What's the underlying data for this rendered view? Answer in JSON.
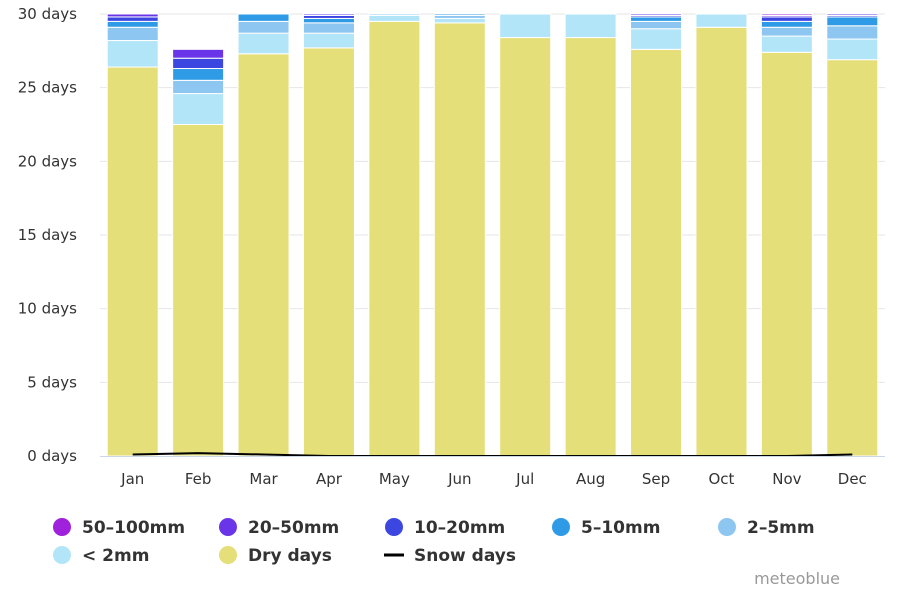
{
  "chart_data": {
    "type": "bar",
    "stacked": true,
    "title": "",
    "xlabel": "",
    "ylabel": "",
    "categories": [
      "Jan",
      "Feb",
      "Mar",
      "Apr",
      "May",
      "Jun",
      "Jul",
      "Aug",
      "Sep",
      "Oct",
      "Nov",
      "Dec"
    ],
    "y_ticks": [
      "0 days",
      "5 days",
      "10 days",
      "15 days",
      "20 days",
      "25 days",
      "30 days"
    ],
    "y_tick_values": [
      0,
      5,
      10,
      15,
      20,
      25,
      30
    ],
    "ylim": [
      0,
      30
    ],
    "grid": true,
    "legend_position": "bottom",
    "series": [
      {
        "name": "Dry days",
        "color": "#e4df78",
        "values": [
          26.4,
          22.5,
          27.3,
          27.7,
          29.5,
          29.4,
          28.4,
          28.4,
          27.6,
          29.1,
          27.4,
          26.9
        ]
      },
      {
        "name": "< 2mm",
        "color": "#b3e5f8",
        "values": [
          1.8,
          2.1,
          1.4,
          1.0,
          0.4,
          0.3,
          1.6,
          1.6,
          1.4,
          0.9,
          1.1,
          1.4
        ]
      },
      {
        "name": "2-5mm",
        "color": "#8ec6f2",
        "values": [
          0.9,
          0.9,
          0.8,
          0.7,
          0.1,
          0.2,
          0.0,
          0.0,
          0.5,
          0.0,
          0.6,
          0.9
        ]
      },
      {
        "name": "5-10mm",
        "color": "#2f9be6",
        "values": [
          0.4,
          0.8,
          0.5,
          0.3,
          0.0,
          0.1,
          0.0,
          0.0,
          0.3,
          0.0,
          0.4,
          0.6
        ]
      },
      {
        "name": "10-20mm",
        "color": "#3b47e0",
        "values": [
          0.3,
          0.7,
          0.0,
          0.2,
          0.0,
          0.0,
          0.0,
          0.0,
          0.1,
          0.0,
          0.3,
          0.1
        ]
      },
      {
        "name": "20-50mm",
        "color": "#6a35e8",
        "values": [
          0.2,
          0.6,
          0.0,
          0.1,
          0.0,
          0.0,
          0.0,
          0.0,
          0.1,
          0.0,
          0.1,
          0.1
        ]
      },
      {
        "name": "50-100mm",
        "color": "#a021dc",
        "values": [
          0.0,
          0.0,
          0.0,
          0.0,
          0.0,
          0.0,
          0.0,
          0.0,
          0.0,
          0.0,
          0.1,
          0.0
        ]
      }
    ],
    "snow_days": {
      "name": "Snow days",
      "color": "#000000",
      "values": [
        0.1,
        0.2,
        0.1,
        0.0,
        0.0,
        0.0,
        0.0,
        0.0,
        0.0,
        0.0,
        0.0,
        0.1
      ]
    },
    "legend": [
      {
        "label": "50–100mm",
        "color": "#a021dc",
        "marker": "circle"
      },
      {
        "label": "20–50mm",
        "color": "#6a35e8",
        "marker": "circle"
      },
      {
        "label": "10–20mm",
        "color": "#3b47e0",
        "marker": "circle"
      },
      {
        "label": "5–10mm",
        "color": "#2f9be6",
        "marker": "circle"
      },
      {
        "label": "2–5mm",
        "color": "#8ec6f2",
        "marker": "circle"
      },
      {
        "label": "< 2mm",
        "color": "#b3e5f8",
        "marker": "circle"
      },
      {
        "label": "Dry days",
        "color": "#e4df78",
        "marker": "circle"
      },
      {
        "label": "Snow days",
        "color": "#000000",
        "marker": "line"
      }
    ]
  },
  "credit": "meteoblue"
}
